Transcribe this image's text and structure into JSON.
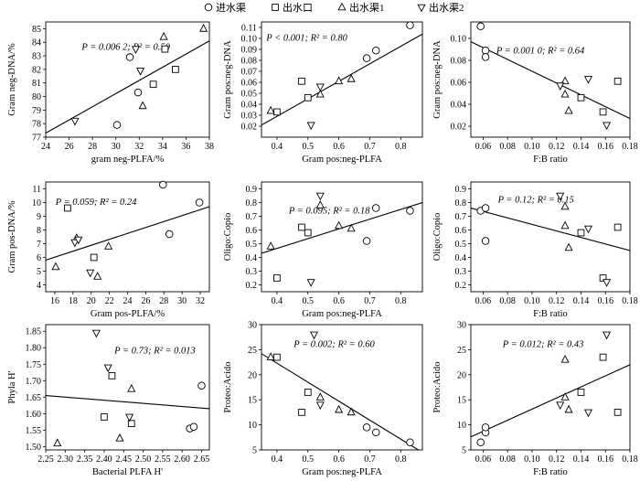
{
  "legend": [
    {
      "label": "进水渠",
      "marker": "circle"
    },
    {
      "label": "出水口",
      "marker": "square"
    },
    {
      "label": "出水渠1",
      "marker": "triangle-up"
    },
    {
      "label": "出水渠2",
      "marker": "triangle-down"
    }
  ],
  "chart_data": [
    {
      "type": "scatter",
      "xlabel": "gram neg-PLFA/%",
      "ylabel": "Gram neg-DNA/%",
      "xlim": [
        24,
        38
      ],
      "ylim": [
        77,
        85.5
      ],
      "xticks": [
        "24",
        "26",
        "28",
        "30",
        "32",
        "34",
        "36",
        "38"
      ],
      "yticks": [
        "77",
        "78",
        "79",
        "80",
        "81",
        "82",
        "83",
        "84",
        "85"
      ],
      "stat_text": "P = 0.006 2; R² = 0.50",
      "fit": [
        [
          24,
          77.3
        ],
        [
          38,
          84.1
        ]
      ],
      "series": [
        {
          "name": "进水渠",
          "marker": "circle",
          "points": [
            [
              30.1,
              77.9
            ],
            [
              31.9,
              80.3
            ],
            [
              31.2,
              82.9
            ]
          ]
        },
        {
          "name": "出水口",
          "marker": "square",
          "points": [
            [
              33.2,
              80.9
            ],
            [
              34.2,
              83.5
            ],
            [
              35.1,
              82.0
            ]
          ]
        },
        {
          "name": "出水渠1",
          "marker": "triangle-up",
          "points": [
            [
              32.3,
              79.3
            ],
            [
              34.1,
              84.4
            ],
            [
              37.5,
              85.0
            ]
          ]
        },
        {
          "name": "出水渠2",
          "marker": "triangle-down",
          "points": [
            [
              26.5,
              78.2
            ],
            [
              31.7,
              83.5
            ],
            [
              32.1,
              81.9
            ]
          ]
        }
      ]
    },
    {
      "type": "scatter",
      "xlabel": "Gram pos:neg-PLFA",
      "ylabel": "Gram pos:neg-DNA",
      "xlim": [
        0.35,
        0.87
      ],
      "ylim": [
        0.01,
        0.115
      ],
      "xticks": [
        "0.4",
        "0.5",
        "0.6",
        "0.7",
        "0.8"
      ],
      "yticks": [
        "0.02",
        "0.03",
        "0.04",
        "0.05",
        "0.06",
        "0.07",
        "0.08",
        "0.09",
        "0.10",
        "0.11"
      ],
      "stat_text": "P < 0.001; R² = 0.80",
      "fit": [
        [
          0.35,
          0.021
        ],
        [
          0.87,
          0.104
        ]
      ],
      "series": [
        {
          "name": "进水渠",
          "marker": "circle",
          "points": [
            [
              0.69,
              0.082
            ],
            [
              0.72,
              0.089
            ],
            [
              0.83,
              0.112
            ]
          ]
        },
        {
          "name": "出水口",
          "marker": "square",
          "points": [
            [
              0.4,
              0.033
            ],
            [
              0.48,
              0.061
            ],
            [
              0.5,
              0.046
            ]
          ]
        },
        {
          "name": "出水渠1",
          "marker": "triangle-up",
          "points": [
            [
              0.38,
              0.034
            ],
            [
              0.54,
              0.049
            ],
            [
              0.6,
              0.061
            ],
            [
              0.64,
              0.063
            ]
          ]
        },
        {
          "name": "出水渠2",
          "marker": "triangle-down",
          "points": [
            [
              0.51,
              0.021
            ],
            [
              0.54,
              0.056
            ]
          ]
        }
      ]
    },
    {
      "type": "scatter",
      "xlabel": "F:B ratio",
      "ylabel": "Gram pos:neg-DNA",
      "xlim": [
        0.05,
        0.18
      ],
      "ylim": [
        0.01,
        0.115
      ],
      "xticks": [
        "0.06",
        "0.08",
        "0.10",
        "0.12",
        "0.14",
        "0.16",
        "0.18"
      ],
      "yticks": [
        "0.02",
        "0.04",
        "0.06",
        "0.08",
        "0.10"
      ],
      "stat_text": "P = 0.001 0; R² = 0.64",
      "fit": [
        [
          0.05,
          0.097
        ],
        [
          0.18,
          0.027
        ]
      ],
      "series": [
        {
          "name": "进水渠",
          "marker": "circle",
          "points": [
            [
              0.058,
              0.111
            ],
            [
              0.062,
              0.089
            ],
            [
              0.062,
              0.083
            ]
          ]
        },
        {
          "name": "出水口",
          "marker": "square",
          "points": [
            [
              0.14,
              0.046
            ],
            [
              0.158,
              0.033
            ],
            [
              0.17,
              0.061
            ]
          ]
        },
        {
          "name": "出水渠1",
          "marker": "triangle-up",
          "points": [
            [
              0.127,
              0.061
            ],
            [
              0.127,
              0.049
            ],
            [
              0.13,
              0.034
            ]
          ]
        },
        {
          "name": "出水渠2",
          "marker": "triangle-down",
          "points": [
            [
              0.123,
              0.057
            ],
            [
              0.146,
              0.063
            ],
            [
              0.161,
              0.021
            ]
          ]
        }
      ]
    },
    {
      "type": "scatter",
      "xlabel": "Gram pos-PLFA/%",
      "ylabel": "Gram pos-DNA/%",
      "xlim": [
        15,
        33
      ],
      "ylim": [
        3.5,
        11.5
      ],
      "xticks": [
        "16",
        "18",
        "20",
        "22",
        "24",
        "26",
        "28",
        "30",
        "32"
      ],
      "yticks": [
        "4",
        "5",
        "6",
        "7",
        "8",
        "9",
        "10",
        "11"
      ],
      "stat_text": "P = 0.059; R² = 0.24",
      "fit": [
        [
          15,
          5.8
        ],
        [
          33,
          9.7
        ]
      ],
      "series": [
        {
          "name": "进水渠",
          "marker": "circle",
          "points": [
            [
              27.9,
              11.3
            ],
            [
              28.6,
              7.7
            ],
            [
              31.9,
              10.0
            ]
          ]
        },
        {
          "name": "出水口",
          "marker": "square",
          "points": [
            [
              17.4,
              9.6
            ],
            [
              20.3,
              6.0
            ]
          ]
        },
        {
          "name": "出水渠1",
          "marker": "triangle-up",
          "points": [
            [
              16.1,
              5.3
            ],
            [
              20.7,
              4.6
            ],
            [
              21.9,
              6.8
            ],
            [
              18.4,
              7.4
            ]
          ]
        },
        {
          "name": "出水渠2",
          "marker": "triangle-down",
          "points": [
            [
              18.2,
              7.1
            ],
            [
              18.6,
              7.3
            ],
            [
              19.9,
              4.9
            ]
          ]
        }
      ]
    },
    {
      "type": "scatter",
      "xlabel": "Gram pos:neg-PLFA",
      "ylabel": "Oligo:Copio",
      "xlim": [
        0.35,
        0.87
      ],
      "ylim": [
        0.15,
        0.95
      ],
      "xticks": [
        "0.4",
        "0.5",
        "0.6",
        "0.7",
        "0.8"
      ],
      "yticks": [
        "0.2",
        "0.3",
        "0.4",
        "0.5",
        "0.6",
        "0.7",
        "0.8",
        "0.9"
      ],
      "stat_text": "P = 0.095; R² = 0.18",
      "fit": [
        [
          0.35,
          0.43
        ],
        [
          0.87,
          0.8
        ]
      ],
      "series": [
        {
          "name": "进水渠",
          "marker": "circle",
          "points": [
            [
              0.69,
              0.52
            ],
            [
              0.72,
              0.76
            ],
            [
              0.83,
              0.74
            ]
          ]
        },
        {
          "name": "出水口",
          "marker": "square",
          "points": [
            [
              0.4,
              0.25
            ],
            [
              0.48,
              0.62
            ],
            [
              0.5,
              0.58
            ]
          ]
        },
        {
          "name": "出水渠1",
          "marker": "triangle-up",
          "points": [
            [
              0.38,
              0.48
            ],
            [
              0.54,
              0.78
            ],
            [
              0.6,
              0.63
            ],
            [
              0.64,
              0.61
            ]
          ]
        },
        {
          "name": "出水渠2",
          "marker": "triangle-down",
          "points": [
            [
              0.51,
              0.22
            ],
            [
              0.54,
              0.85
            ]
          ]
        }
      ]
    },
    {
      "type": "scatter",
      "xlabel": "F:B ratio",
      "ylabel": "Oligo:Copio",
      "xlim": [
        0.05,
        0.18
      ],
      "ylim": [
        0.15,
        0.95
      ],
      "xticks": [
        "0.06",
        "0.08",
        "0.10",
        "0.12",
        "0.14",
        "0.16",
        "0.18"
      ],
      "yticks": [
        "0.2",
        "0.3",
        "0.4",
        "0.5",
        "0.6",
        "0.7",
        "0.8",
        "0.9"
      ],
      "stat_text": "P = 0.12; R² = 0.15",
      "fit": [
        [
          0.05,
          0.76
        ],
        [
          0.18,
          0.45
        ]
      ],
      "series": [
        {
          "name": "进水渠",
          "marker": "circle",
          "points": [
            [
              0.058,
              0.74
            ],
            [
              0.062,
              0.76
            ],
            [
              0.062,
              0.52
            ]
          ]
        },
        {
          "name": "出水口",
          "marker": "square",
          "points": [
            [
              0.14,
              0.58
            ],
            [
              0.158,
              0.25
            ],
            [
              0.17,
              0.62
            ]
          ]
        },
        {
          "name": "出水渠1",
          "marker": "triangle-up",
          "points": [
            [
              0.127,
              0.77
            ],
            [
              0.127,
              0.63
            ],
            [
              0.13,
              0.47
            ]
          ]
        },
        {
          "name": "出水渠2",
          "marker": "triangle-down",
          "points": [
            [
              0.123,
              0.85
            ],
            [
              0.146,
              0.61
            ],
            [
              0.161,
              0.22
            ]
          ]
        }
      ]
    },
    {
      "type": "scatter",
      "xlabel": "Bacterial PLFA H'",
      "ylabel": "Phyla H'",
      "xlim": [
        2.25,
        2.67
      ],
      "ylim": [
        1.49,
        1.87
      ],
      "xticks": [
        "2.25",
        "2.30",
        "2.35",
        "2.40",
        "2.45",
        "2.50",
        "2.55",
        "2.60",
        "2.65"
      ],
      "yticks": [
        "1.50",
        "1.55",
        "1.60",
        "1.65",
        "1.70",
        "1.75",
        "1.80",
        "1.85"
      ],
      "stat_text": "P = 0.73; R² = 0.013",
      "fit": [
        [
          2.25,
          1.655
        ],
        [
          2.67,
          1.615
        ]
      ],
      "series": [
        {
          "name": "进水渠",
          "marker": "circle",
          "points": [
            [
              2.62,
              1.555
            ],
            [
              2.63,
              1.56
            ],
            [
              2.65,
              1.685
            ]
          ]
        },
        {
          "name": "出水口",
          "marker": "square",
          "points": [
            [
              2.4,
              1.59
            ],
            [
              2.42,
              1.715
            ],
            [
              2.47,
              1.57
            ]
          ]
        },
        {
          "name": "出水渠1",
          "marker": "triangle-up",
          "points": [
            [
              2.28,
              1.51
            ],
            [
              2.44,
              1.525
            ],
            [
              2.47,
              1.675
            ]
          ]
        },
        {
          "name": "出水渠2",
          "marker": "triangle-down",
          "points": [
            [
              2.38,
              1.845
            ],
            [
              2.41,
              1.74
            ],
            [
              2.465,
              1.59
            ]
          ]
        }
      ]
    },
    {
      "type": "scatter",
      "xlabel": "Gram pos:neg-PLFA",
      "ylabel": "Proteo:Acido",
      "xlim": [
        0.35,
        0.87
      ],
      "ylim": [
        5,
        30
      ],
      "xticks": [
        "0.4",
        "0.5",
        "0.6",
        "0.7",
        "0.8"
      ],
      "yticks": [
        "5",
        "10",
        "15",
        "20",
        "25",
        "30"
      ],
      "stat_text": "P = 0.002; R² = 0.60",
      "fit": [
        [
          0.35,
          24.2
        ],
        [
          0.87,
          4.5
        ]
      ],
      "series": [
        {
          "name": "进水渠",
          "marker": "circle",
          "points": [
            [
              0.69,
              9.5
            ],
            [
              0.72,
              8.5
            ],
            [
              0.83,
              6.5
            ]
          ]
        },
        {
          "name": "出水口",
          "marker": "square",
          "points": [
            [
              0.4,
              23.5
            ],
            [
              0.48,
              12.5
            ],
            [
              0.5,
              16.5
            ]
          ]
        },
        {
          "name": "出水渠1",
          "marker": "triangle-up",
          "points": [
            [
              0.38,
              23.5
            ],
            [
              0.54,
              15.5
            ],
            [
              0.6,
              13.0
            ],
            [
              0.64,
              12.5
            ]
          ]
        },
        {
          "name": "出水渠2",
          "marker": "triangle-down",
          "points": [
            [
              0.52,
              28.0
            ],
            [
              0.54,
              14.0
            ]
          ]
        }
      ]
    },
    {
      "type": "scatter",
      "xlabel": "F:B ratio",
      "ylabel": "Proteo:Acido",
      "xlim": [
        0.05,
        0.18
      ],
      "ylim": [
        5,
        30
      ],
      "xticks": [
        "0.06",
        "0.08",
        "0.10",
        "0.12",
        "0.14",
        "0.16",
        "0.18"
      ],
      "yticks": [
        "5",
        "10",
        "15",
        "20",
        "25",
        "30"
      ],
      "stat_text": "P = 0.012; R² = 0.43",
      "fit": [
        [
          0.05,
          7.6
        ],
        [
          0.18,
          22.0
        ]
      ],
      "series": [
        {
          "name": "进水渠",
          "marker": "circle",
          "points": [
            [
              0.058,
              6.5
            ],
            [
              0.062,
              8.5
            ],
            [
              0.062,
              9.5
            ]
          ]
        },
        {
          "name": "出水口",
          "marker": "square",
          "points": [
            [
              0.14,
              16.5
            ],
            [
              0.158,
              23.5
            ],
            [
              0.17,
              12.5
            ]
          ]
        },
        {
          "name": "出水渠1",
          "marker": "triangle-up",
          "points": [
            [
              0.127,
              15.5
            ],
            [
              0.127,
              23.0
            ],
            [
              0.13,
              13.0
            ]
          ]
        },
        {
          "name": "出水渠2",
          "marker": "triangle-down",
          "points": [
            [
              0.123,
              14.0
            ],
            [
              0.146,
              12.5
            ],
            [
              0.161,
              28.0
            ]
          ]
        }
      ]
    }
  ]
}
